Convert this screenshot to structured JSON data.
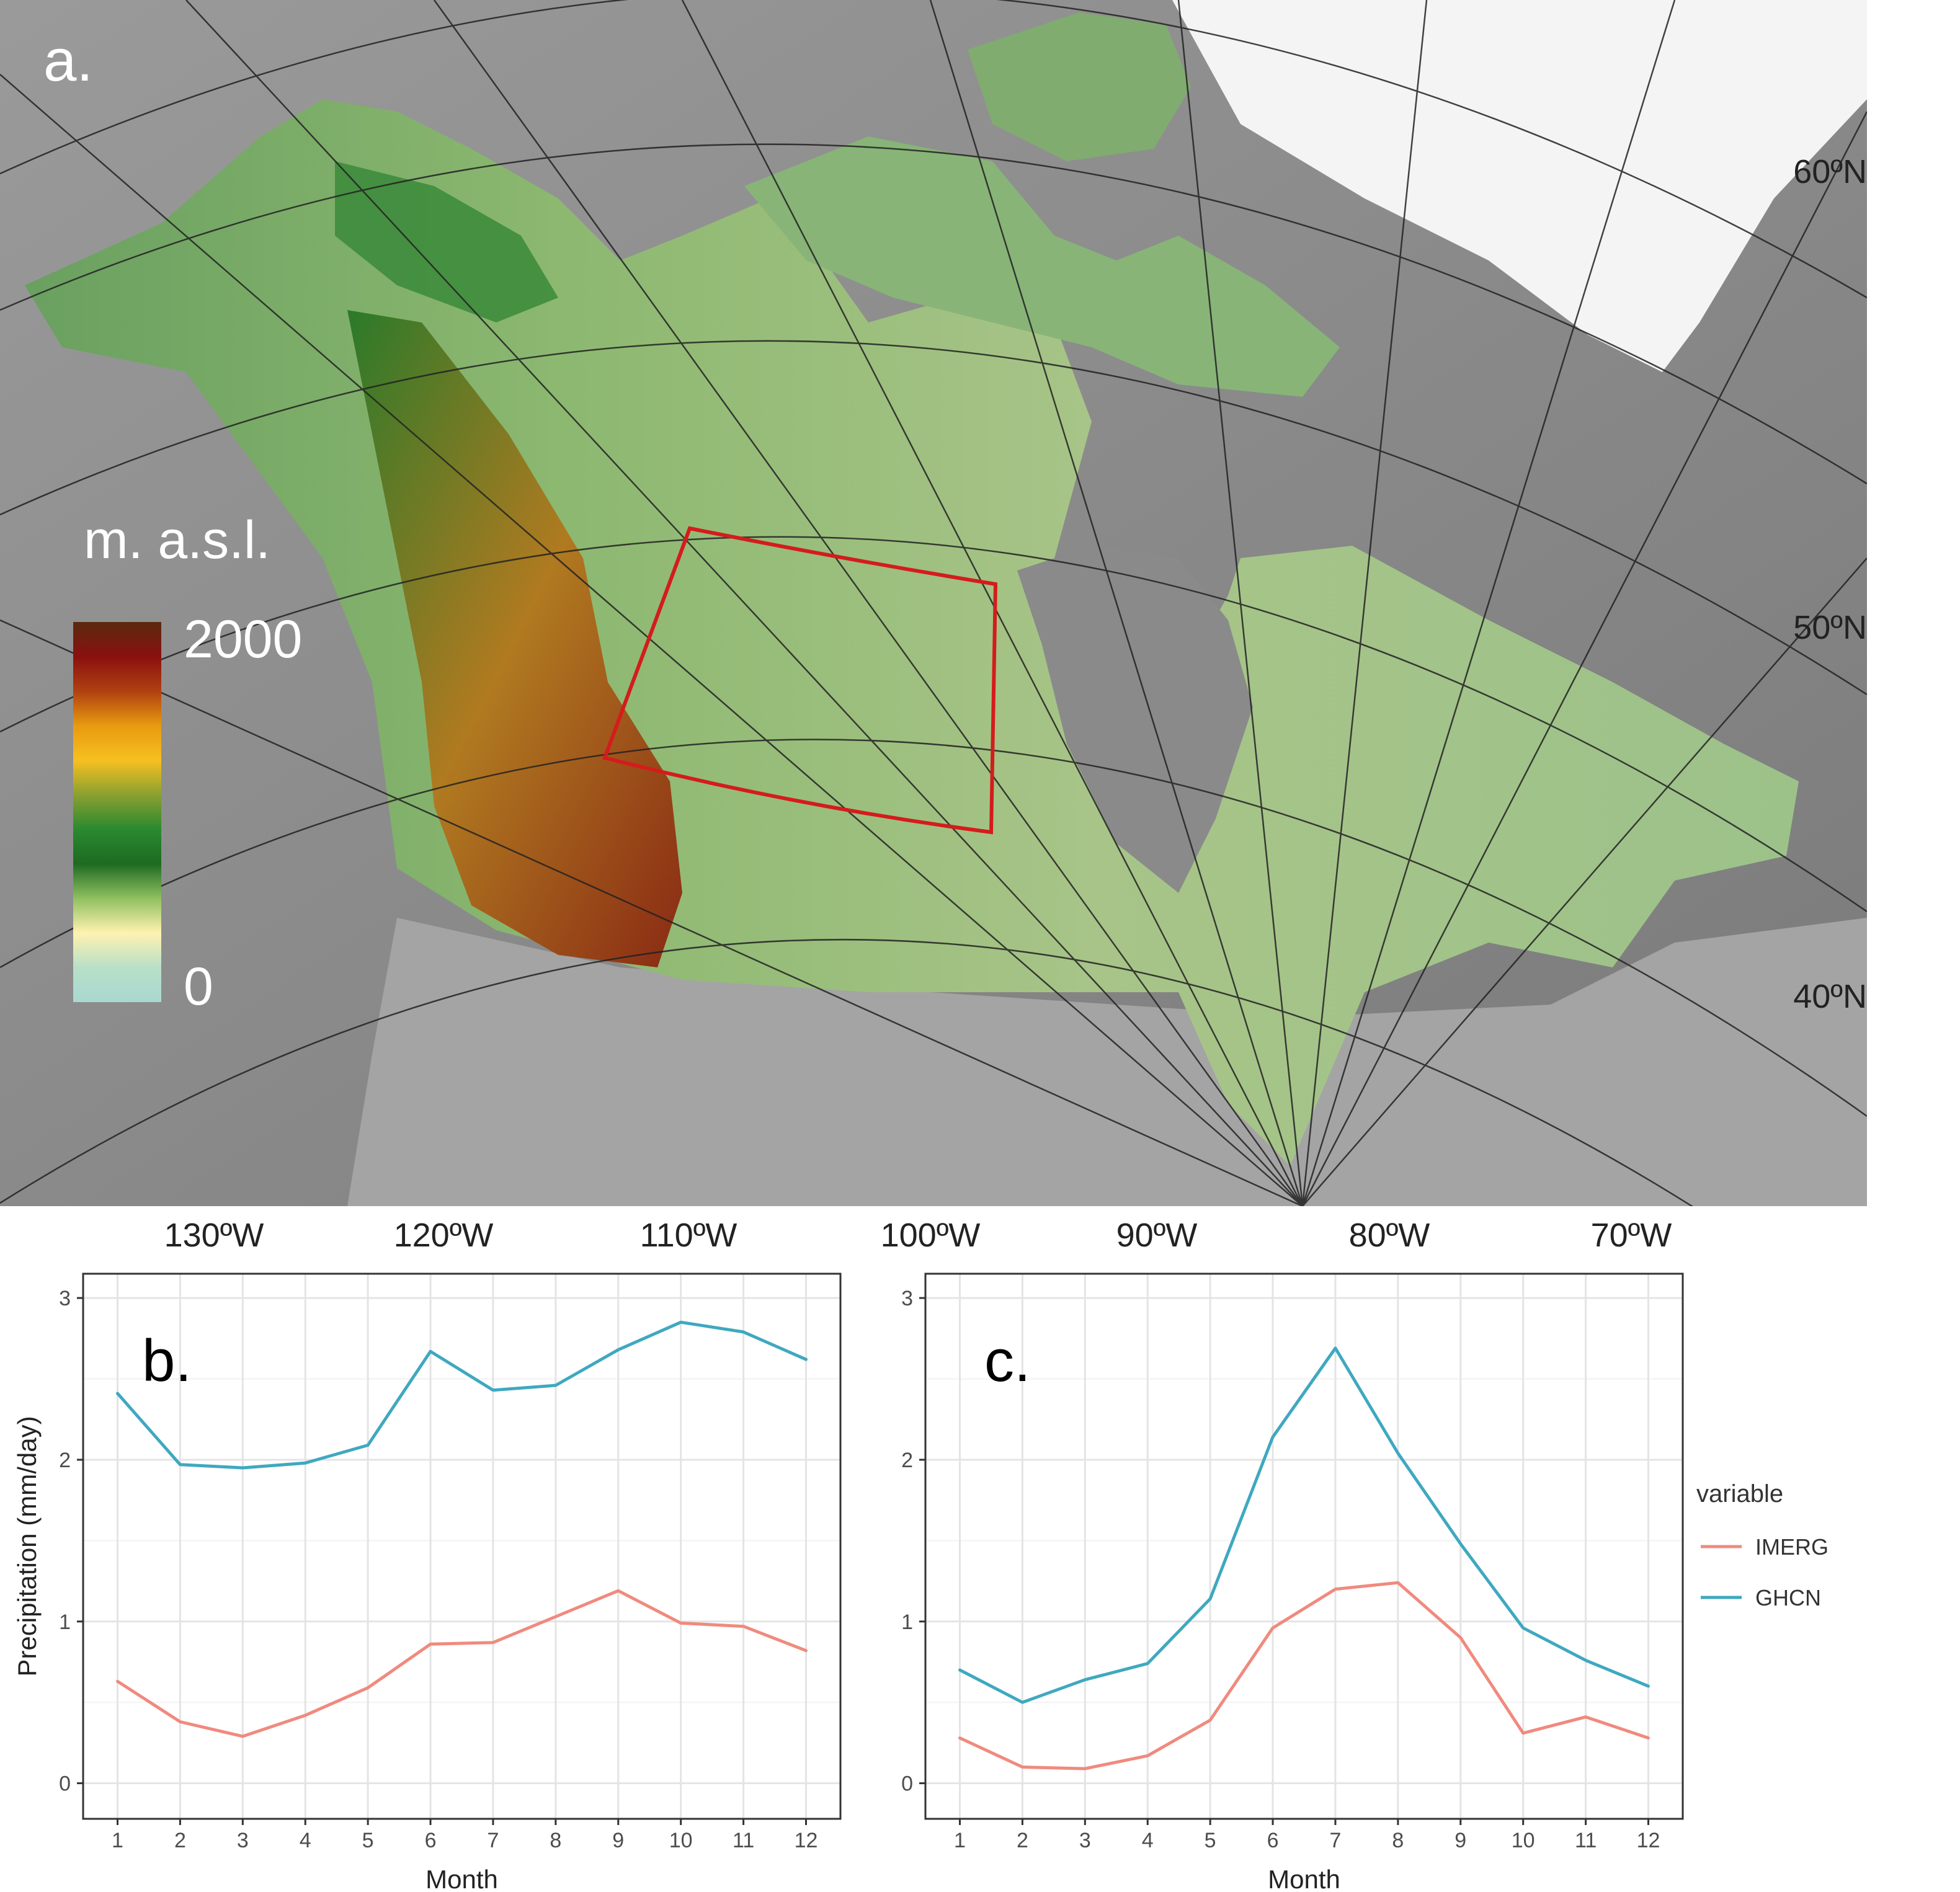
{
  "map": {
    "panel_label": "a.",
    "legend_title": "m. a.s.l.",
    "legend_max": "2000",
    "legend_min": "0",
    "legend_colors": [
      "#5a2a0e",
      "#8a1010",
      "#b04010",
      "#e89a10",
      "#f7c020",
      "#8aa030",
      "#2a8a30",
      "#1e6a22",
      "#8fc060",
      "#fff2b0",
      "#b8e0c8",
      "#a8d8d0"
    ],
    "lat_labels": [
      "60ºN",
      "50ºN",
      "40ºN"
    ],
    "lon_labels": [
      "130ºW",
      "120ºW",
      "110ºW",
      "100ºW",
      "90ºW",
      "80ºW",
      "70ºW"
    ],
    "box_color": "#d41c1c"
  },
  "chart_data": [
    {
      "type": "line",
      "panel_label": "b.",
      "xlabel": "Month",
      "ylabel": "Precipitation (mm/day)",
      "x": [
        1,
        2,
        3,
        4,
        5,
        6,
        7,
        8,
        9,
        10,
        11,
        12
      ],
      "ylim": [
        0,
        3
      ],
      "yticks": [
        0,
        1,
        2,
        3
      ],
      "grid": true,
      "series": [
        {
          "name": "IMERG",
          "color": "#f08a7e",
          "values": [
            0.63,
            0.38,
            0.29,
            0.42,
            0.59,
            0.86,
            0.87,
            1.03,
            1.19,
            0.99,
            0.97,
            0.82
          ]
        },
        {
          "name": "GHCN",
          "color": "#3fa8c0",
          "values": [
            2.41,
            1.97,
            1.95,
            1.98,
            2.09,
            2.67,
            2.43,
            2.46,
            2.68,
            2.85,
            2.79,
            2.62
          ]
        }
      ]
    },
    {
      "type": "line",
      "panel_label": "c.",
      "xlabel": "Month",
      "ylabel": "",
      "x": [
        1,
        2,
        3,
        4,
        5,
        6,
        7,
        8,
        9,
        10,
        11,
        12
      ],
      "ylim": [
        0,
        3
      ],
      "yticks": [
        0,
        1,
        2,
        3
      ],
      "grid": true,
      "legend_position": "right",
      "series": [
        {
          "name": "IMERG",
          "color": "#f08a7e",
          "values": [
            0.28,
            0.1,
            0.09,
            0.17,
            0.39,
            0.96,
            1.2,
            1.24,
            0.9,
            0.31,
            0.41,
            0.28
          ]
        },
        {
          "name": "GHCN",
          "color": "#3fa8c0",
          "values": [
            0.7,
            0.5,
            0.64,
            0.74,
            1.14,
            2.14,
            2.69,
            2.04,
            1.48,
            0.96,
            0.76,
            0.6
          ]
        }
      ]
    }
  ],
  "legend": {
    "title": "variable",
    "items": [
      {
        "label": "IMERG",
        "color": "#f08a7e"
      },
      {
        "label": "GHCN",
        "color": "#3fa8c0"
      }
    ]
  }
}
